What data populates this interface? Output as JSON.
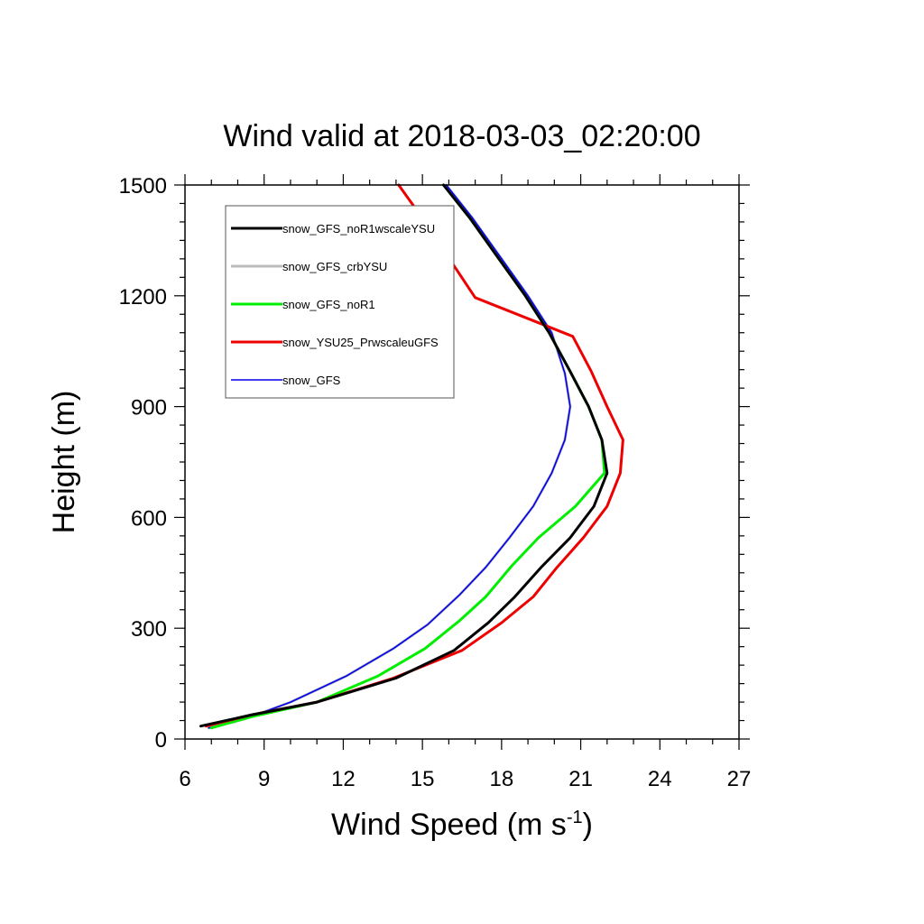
{
  "chart_data": {
    "type": "line",
    "title": "Wind valid at 2018-03-03_02:20:00",
    "xlabel": {
      "main": "Wind Speed (m s",
      "superscript": "-1",
      "suffix": ")"
    },
    "ylabel": "Height (m)",
    "xlim": [
      6,
      27
    ],
    "ylim": [
      0,
      1500
    ],
    "xticks": [
      6,
      9,
      12,
      15,
      18,
      21,
      24,
      27
    ],
    "yticks": [
      0,
      300,
      600,
      900,
      1200,
      1500
    ],
    "legend_position": "top-left",
    "grid": false,
    "series": [
      {
        "name": "snow_GFS_noR1wscaleYSU",
        "color": "#000000",
        "points": [
          [
            6.6,
            35
          ],
          [
            8.5,
            65
          ],
          [
            11.0,
            100
          ],
          [
            14.0,
            165
          ],
          [
            16.2,
            240
          ],
          [
            17.5,
            315
          ],
          [
            18.5,
            385
          ],
          [
            19.5,
            465
          ],
          [
            20.6,
            545
          ],
          [
            21.5,
            630
          ],
          [
            22.0,
            720
          ],
          [
            21.8,
            810
          ],
          [
            21.3,
            900
          ],
          [
            20.6,
            995
          ],
          [
            19.8,
            1100
          ],
          [
            18.9,
            1200
          ],
          [
            17.9,
            1300
          ],
          [
            16.8,
            1410
          ],
          [
            15.8,
            1500
          ]
        ]
      },
      {
        "name": "snow_GFS_crbYSU",
        "color": "#bbbbbb",
        "points": [
          [
            6.9,
            30
          ],
          [
            8.3,
            55
          ],
          [
            10.0,
            100
          ],
          [
            12.1,
            170
          ],
          [
            13.9,
            245
          ],
          [
            15.2,
            310
          ],
          [
            16.4,
            390
          ],
          [
            17.4,
            465
          ],
          [
            18.3,
            545
          ],
          [
            19.2,
            630
          ],
          [
            19.9,
            720
          ],
          [
            20.4,
            810
          ],
          [
            20.6,
            900
          ],
          [
            20.4,
            990
          ],
          [
            19.9,
            1100
          ],
          [
            19.0,
            1200
          ],
          [
            18.0,
            1300
          ],
          [
            16.9,
            1410
          ],
          [
            15.9,
            1500
          ]
        ]
      },
      {
        "name": "snow_GFS_noR1",
        "color": "#00ee00",
        "points": [
          [
            7.0,
            30
          ],
          [
            8.5,
            60
          ],
          [
            11.0,
            100
          ],
          [
            13.3,
            170
          ],
          [
            15.1,
            245
          ],
          [
            16.4,
            320
          ],
          [
            17.4,
            385
          ],
          [
            18.4,
            470
          ],
          [
            19.4,
            545
          ],
          [
            20.8,
            630
          ],
          [
            21.9,
            720
          ],
          [
            21.8,
            810
          ],
          [
            21.3,
            900
          ],
          [
            20.6,
            995
          ],
          [
            19.8,
            1100
          ],
          [
            18.9,
            1200
          ],
          [
            17.9,
            1300
          ],
          [
            16.8,
            1410
          ],
          [
            15.8,
            1500
          ]
        ]
      },
      {
        "name": "snow_YSU25_PrwscaleuGFS",
        "color": "#ee0000",
        "points": [
          [
            6.8,
            35
          ],
          [
            8.5,
            65
          ],
          [
            11.0,
            100
          ],
          [
            13.9,
            165
          ],
          [
            16.5,
            240
          ],
          [
            18.0,
            315
          ],
          [
            19.2,
            385
          ],
          [
            20.1,
            465
          ],
          [
            21.1,
            545
          ],
          [
            22.0,
            630
          ],
          [
            22.5,
            720
          ],
          [
            22.6,
            810
          ],
          [
            22.0,
            900
          ],
          [
            21.4,
            995
          ],
          [
            20.7,
            1090
          ],
          [
            17.0,
            1195
          ],
          [
            15.0,
            1410
          ],
          [
            14.1,
            1500
          ]
        ]
      },
      {
        "name": "snow_GFS",
        "color": "#0000ee",
        "points": [
          [
            6.9,
            30
          ],
          [
            8.3,
            55
          ],
          [
            10.0,
            100
          ],
          [
            12.1,
            170
          ],
          [
            13.9,
            245
          ],
          [
            15.2,
            310
          ],
          [
            16.4,
            390
          ],
          [
            17.4,
            465
          ],
          [
            18.3,
            545
          ],
          [
            19.2,
            630
          ],
          [
            19.9,
            720
          ],
          [
            20.4,
            810
          ],
          [
            20.6,
            900
          ],
          [
            20.4,
            990
          ],
          [
            19.9,
            1100
          ],
          [
            19.0,
            1200
          ],
          [
            18.0,
            1300
          ],
          [
            16.9,
            1410
          ],
          [
            15.9,
            1500
          ]
        ]
      }
    ]
  }
}
